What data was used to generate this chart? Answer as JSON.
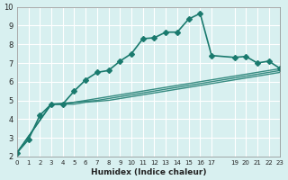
{
  "xlabel": "Humidex (Indice chaleur)",
  "ylabel": "",
  "bg_color": "#d8f0f0",
  "line_color": "#1a7a6e",
  "grid_color": "#ffffff",
  "xlim": [
    0,
    23
  ],
  "ylim": [
    2,
    10
  ],
  "x_ticks": [
    0,
    1,
    2,
    3,
    4,
    5,
    6,
    7,
    8,
    9,
    10,
    11,
    12,
    13,
    14,
    15,
    16,
    17,
    19,
    20,
    21,
    22,
    23
  ],
  "y_ticks": [
    2,
    3,
    4,
    5,
    6,
    7,
    8,
    9,
    10
  ],
  "series": {
    "main": {
      "x": [
        0,
        1,
        2,
        3,
        4,
        5,
        6,
        7,
        8,
        9,
        10,
        11,
        12,
        13,
        14,
        15,
        16,
        17,
        19,
        20,
        21,
        22,
        23
      ],
      "y": [
        2.2,
        2.9,
        4.2,
        4.8,
        4.8,
        5.5,
        6.1,
        6.5,
        6.6,
        7.1,
        7.5,
        8.3,
        8.35,
        8.65,
        8.65,
        9.35,
        9.65,
        7.4,
        7.3,
        7.35,
        7.0,
        7.1,
        6.7
      ],
      "marker": "D",
      "markersize": 3,
      "linewidth": 1.2
    },
    "line2": {
      "x": [
        0,
        3,
        4,
        5,
        6,
        7,
        8,
        9,
        10,
        11,
        12,
        13,
        14,
        15,
        16,
        17,
        19,
        20,
        21,
        22,
        23
      ],
      "y": [
        2.2,
        4.8,
        4.8,
        4.9,
        5.0,
        5.1,
        5.2,
        5.3,
        5.4,
        5.5,
        5.6,
        5.7,
        5.8,
        5.9,
        6.0,
        6.1,
        6.3,
        6.4,
        6.5,
        6.6,
        6.7
      ],
      "marker": null,
      "linewidth": 1.0
    },
    "line3": {
      "x": [
        0,
        3,
        4,
        5,
        6,
        7,
        8,
        9,
        10,
        11,
        12,
        13,
        14,
        15,
        16,
        17,
        19,
        20,
        21,
        22,
        23
      ],
      "y": [
        2.2,
        4.8,
        4.85,
        4.9,
        4.95,
        5.0,
        5.1,
        5.2,
        5.3,
        5.4,
        5.5,
        5.6,
        5.7,
        5.8,
        5.9,
        6.0,
        6.2,
        6.3,
        6.4,
        6.5,
        6.6
      ],
      "marker": null,
      "linewidth": 1.0
    },
    "line4": {
      "x": [
        0,
        3,
        4,
        5,
        6,
        7,
        8,
        9,
        10,
        11,
        12,
        13,
        14,
        15,
        16,
        17,
        19,
        20,
        21,
        22,
        23
      ],
      "y": [
        2.2,
        4.8,
        4.8,
        4.8,
        4.9,
        4.95,
        5.0,
        5.1,
        5.2,
        5.3,
        5.4,
        5.5,
        5.6,
        5.7,
        5.8,
        5.9,
        6.1,
        6.2,
        6.3,
        6.4,
        6.5
      ],
      "marker": null,
      "linewidth": 1.0
    }
  }
}
